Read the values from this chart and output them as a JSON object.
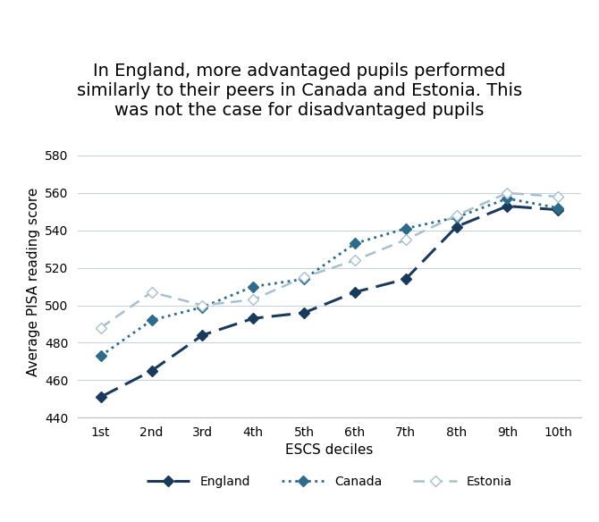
{
  "title_line1": "In England, more advantaged pupils performed",
  "title_line2": "similarly to their peers in Canada and Estonia. This",
  "title_line3": "was not the case for disadvantaged pupils",
  "xlabel": "ESCS deciles",
  "ylabel": "Average PISA reading score",
  "x_labels": [
    "1st",
    "2nd",
    "3rd",
    "4th",
    "5th",
    "6th",
    "7th",
    "8th",
    "9th",
    "10th"
  ],
  "england": [
    451,
    465,
    484,
    493,
    496,
    507,
    514,
    542,
    553,
    551
  ],
  "canada": [
    473,
    492,
    499,
    510,
    514,
    533,
    541,
    547,
    557,
    552
  ],
  "estonia": [
    488,
    507,
    500,
    503,
    515,
    524,
    535,
    548,
    560,
    558
  ],
  "england_color": "#1a3a5c",
  "canada_color": "#2e6b8a",
  "estonia_color": "#a8bfcc",
  "ylim": [
    440,
    585
  ],
  "yticks": [
    440,
    460,
    480,
    500,
    520,
    540,
    560,
    580
  ],
  "background_color": "#ffffff",
  "grid_color": "#c8d4dc",
  "title_fontsize": 14,
  "axis_label_fontsize": 11,
  "tick_fontsize": 10,
  "legend_fontsize": 10
}
